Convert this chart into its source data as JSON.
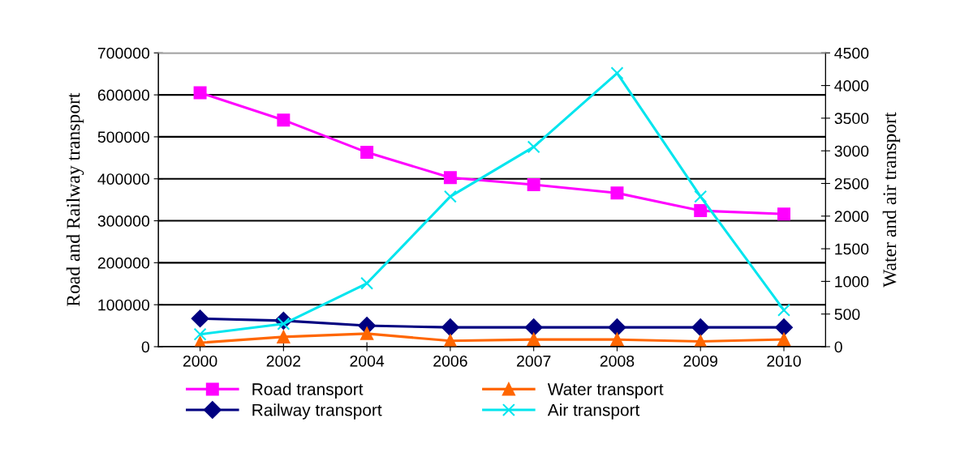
{
  "chart_data": {
    "type": "line",
    "categories": [
      "2000",
      "2002",
      "2004",
      "2006",
      "2007",
      "2008",
      "2009",
      "2010"
    ],
    "ylabel": "Road and Railway transport",
    "y2label": "Water and air transport",
    "ylim": [
      0,
      700000
    ],
    "yticks": [
      0,
      100000,
      200000,
      300000,
      400000,
      500000,
      600000,
      700000
    ],
    "y2lim": [
      0,
      4500
    ],
    "y2ticks": [
      0,
      500,
      1000,
      1500,
      2000,
      2500,
      3000,
      3500,
      4000,
      4500
    ],
    "grid": "y",
    "legend": "bottom",
    "series": [
      {
        "name": "Road transport",
        "color": "#ff00ff",
        "marker": "square",
        "values": [
          605000,
          540000,
          463000,
          403000,
          386000,
          366000,
          324000,
          316000
        ]
      },
      {
        "name": "Railway transport",
        "color": "#000080",
        "marker": "diamond",
        "values": [
          67000,
          62000,
          50000,
          46000,
          46000,
          46000,
          46000,
          46000
        ]
      },
      {
        "name": "Water transport",
        "color": "#ff6600",
        "marker": "triangle",
        "axis": "y2",
        "values": [
          60,
          150,
          200,
          90,
          110,
          110,
          80,
          110
        ]
      },
      {
        "name": "Air transport",
        "color": "#00e5ee",
        "marker": "cross",
        "axis": "y2",
        "values": [
          190,
          350,
          970,
          2300,
          3060,
          4190,
          2300,
          560
        ]
      }
    ]
  }
}
